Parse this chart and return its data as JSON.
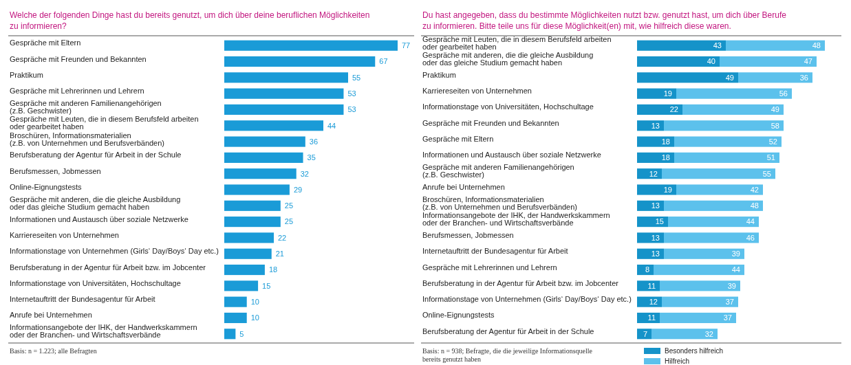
{
  "chart_data": [
    {
      "type": "bar",
      "orientation": "horizontal",
      "title": "Welche der folgenden Dinge hast du bereits genutzt, um dich über deine beruflichen Möglichkeiten\nzu informieren?",
      "categories": [
        "Gespräche mit Eltern",
        "Gespräche mit Freunden und Bekannten",
        "Praktikum",
        "Gespräche mit Lehrerinnen und Lehrern",
        "Gespräche mit anderen Familienangehörigen\n(z.B. Geschwister)",
        "Gespräche mit Leuten, die in diesem Berufsfeld arbeiten\noder gearbeitet haben",
        "Broschüren, Informationsmaterialien\n(z.B. von Unternehmen und Berufsverbänden)",
        "Berufsberatung der Agentur für Arbeit in der Schule",
        "Berufsmessen, Jobmessen",
        "Online-Eignungstests",
        "Gespräche mit anderen, die die gleiche Ausbildung\noder das gleiche Studium gemacht haben",
        "Informationen und Austausch über soziale Netzwerke",
        "Karriereseiten von Unternehmen",
        "Informationstage von Unternehmen (Girls‘ Day/Boys‘ Day etc.)",
        "Berufsberatung in der Agentur für Arbeit bzw. im Jobcenter",
        "Informationstage von Universitäten, Hochschultage",
        "Internetauftritt der Bundesagentur für Arbeit",
        "Anrufe bei Unternehmen",
        "Informationsangebote der IHK, der Handwerkskammern\noder der Branchen- und Wirtschaftsverbände"
      ],
      "series": [
        {
          "color": "#1a9bd7",
          "values": [
            77,
            67,
            55,
            53,
            53,
            44,
            36,
            35,
            32,
            29,
            25,
            25,
            22,
            21,
            18,
            15,
            10,
            10,
            5
          ]
        }
      ],
      "data_labels": true,
      "legend": false,
      "annotations": [
        "Basis: n = 1.223; alle Befragten"
      ]
    },
    {
      "type": "bar",
      "orientation": "horizontal",
      "stacked": true,
      "title": "Du hast angegeben, dass du bestimmte Möglichkeiten nutzt bzw. genutzt hast, um dich über Berufe\nzu informieren. Bitte teile uns für diese Möglichkeit(en) mit, wie hilfreich diese waren.",
      "categories": [
        "Gespräche mit Leuten, die in diesem Berufsfeld arbeiten\noder gearbeitet haben",
        "Gespräche mit anderen, die die gleiche Ausbildung\noder das gleiche Studium gemacht haben",
        "Praktikum",
        "Karriereseiten von Unternehmen",
        "Informationstage von Universitäten, Hochschultage",
        "Gespräche mit Freunden und Bekannten",
        "Gespräche mit Eltern",
        "Informationen und Austausch über soziale Netzwerke",
        "Gespräche mit anderen Familienangehörigen\n(z.B. Geschwister)",
        "Anrufe bei Unternehmen",
        "Broschüren, Informationsmaterialien\n(z.B. von Unternehmen und Berufsverbänden)",
        "Informationsangebote der IHK, der Handwerkskammern\noder der Branchen- und Wirtschaftsverbände",
        "Berufsmessen, Jobmessen",
        "Internetauftritt der Bundesagentur für Arbeit",
        "Gespräche mit Lehrerinnen und Lehrern",
        "Berufsberatung in der Agentur für Arbeit bzw. im Jobcenter",
        "Informationstage von Unternehmen (Girls‘ Day/Boys‘ Day etc.)",
        "Online-Eignungstests",
        "Berufsberatung der Agentur für Arbeit in der Schule"
      ],
      "series": [
        {
          "name": "Besonders hilfreich",
          "color": "#1593c9",
          "values": [
            43,
            40,
            49,
            19,
            22,
            13,
            18,
            18,
            12,
            19,
            13,
            15,
            13,
            13,
            8,
            11,
            12,
            11,
            7
          ]
        },
        {
          "name": "Hilfreich",
          "color": "#5cc1ec",
          "values": [
            48,
            47,
            36,
            56,
            49,
            58,
            52,
            51,
            55,
            42,
            48,
            44,
            46,
            39,
            44,
            39,
            37,
            37,
            32
          ]
        }
      ],
      "data_labels": true,
      "legend": "bottom",
      "annotations": [
        "Basis: n = 938; Befragte, die die jeweilige Informationsquelle\nbereits genutzt haben"
      ]
    }
  ]
}
